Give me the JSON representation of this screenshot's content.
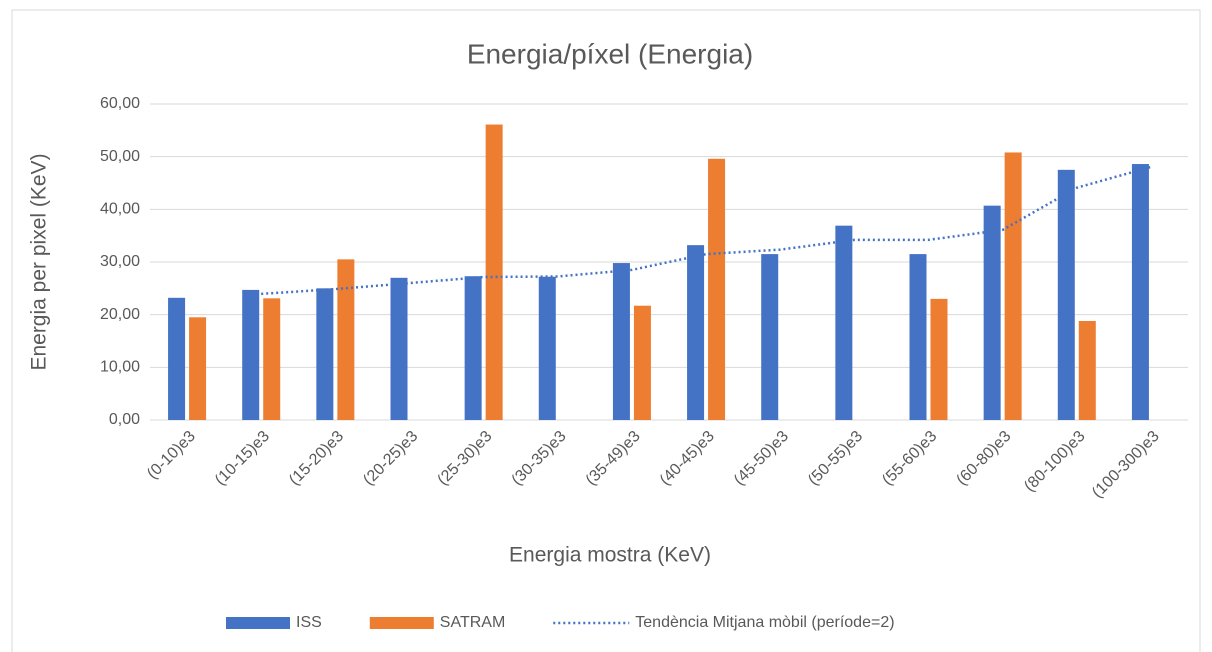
{
  "chart_data": {
    "type": "bar",
    "title": "Energia/píxel (Energia)",
    "x_label": "Energia mostra (KeV)",
    "y_label": "Energia per pixel (KeV)",
    "categories": [
      "(0-10)e3",
      "(10-15)e3",
      "(15-20)e3",
      "(20-25)e3",
      "(25-30)e3",
      "(30-35)e3",
      "(35-49)e3",
      "(40-45)e3",
      "(45-50)e3",
      "(50-55)e3",
      "(55-60)e3",
      "(60-80)e3",
      "(80-100)e3",
      "(100-300)e3"
    ],
    "series": [
      {
        "name": "ISS",
        "color": "#4472c4",
        "type": "bar",
        "values": [
          23.2,
          24.7,
          25.0,
          27.0,
          27.3,
          27.2,
          29.8,
          33.2,
          31.5,
          36.9,
          31.5,
          40.7,
          47.5,
          48.6
        ]
      },
      {
        "name": "SATRAM",
        "color": "#ed7d31",
        "type": "bar",
        "values": [
          19.5,
          23.1,
          30.5,
          null,
          56.1,
          null,
          21.7,
          49.6,
          null,
          null,
          23.0,
          50.8,
          18.8,
          null
        ]
      },
      {
        "name": "Tendència Mitjana mòbil (període=2)",
        "color": "#4472c4",
        "type": "line",
        "line_style": "dotted",
        "values": [
          null,
          23.95,
          24.85,
          26.0,
          27.15,
          27.25,
          28.5,
          31.5,
          32.35,
          34.2,
          34.2,
          36.1,
          44.1,
          48.05
        ]
      }
    ],
    "ylim": [
      0,
      60
    ],
    "yticks": [
      {
        "value": 0,
        "label": "0,00"
      },
      {
        "value": 10,
        "label": "10,00"
      },
      {
        "value": 20,
        "label": "20,00"
      },
      {
        "value": 30,
        "label": "30,00"
      },
      {
        "value": 40,
        "label": "40,00"
      },
      {
        "value": 50,
        "label": "50,00"
      },
      {
        "value": 60,
        "label": "60,00"
      }
    ],
    "grid": true,
    "legend": "bottom"
  }
}
